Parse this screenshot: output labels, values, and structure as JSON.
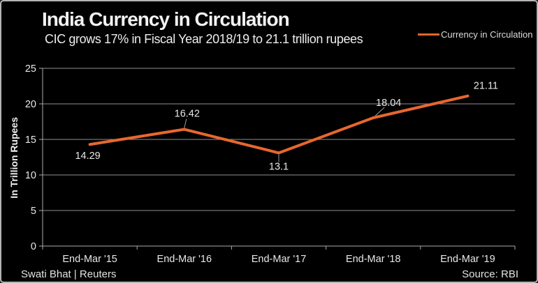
{
  "header": {
    "title": "India Currency in Circulation",
    "subtitle": "CIC grows 17% in Fiscal Year 2018/19 to 21.1 trillion rupees"
  },
  "legend": {
    "label": "Currency in Circulation"
  },
  "footer": {
    "credit": "Swati Bhat | Reuters",
    "source": "Source: RBI"
  },
  "chart_data": {
    "type": "line",
    "title": "India Currency in Circulation",
    "categories": [
      "End-Mar '15",
      "End-Mar '16",
      "End-Mar '17",
      "End-Mar '18",
      "End-Mar '19"
    ],
    "series": [
      {
        "name": "Currency in Circulation",
        "values": [
          14.29,
          16.42,
          13.1,
          18.04,
          21.11
        ]
      }
    ],
    "data_labels": [
      "14.29",
      "16.42",
      "13.1",
      "18.04",
      "21.11"
    ],
    "xlabel": "",
    "ylabel": "In Trillion Rupees",
    "ylim": [
      0,
      25
    ],
    "yticks": [
      0,
      5,
      10,
      15,
      20,
      25
    ],
    "grid": true,
    "legend_position": "top-right",
    "colors": {
      "line": "#e8672e",
      "grid": "#8f8f8f",
      "axis": "#ababab",
      "text": "#e8e8e8",
      "background": "#000000"
    }
  }
}
